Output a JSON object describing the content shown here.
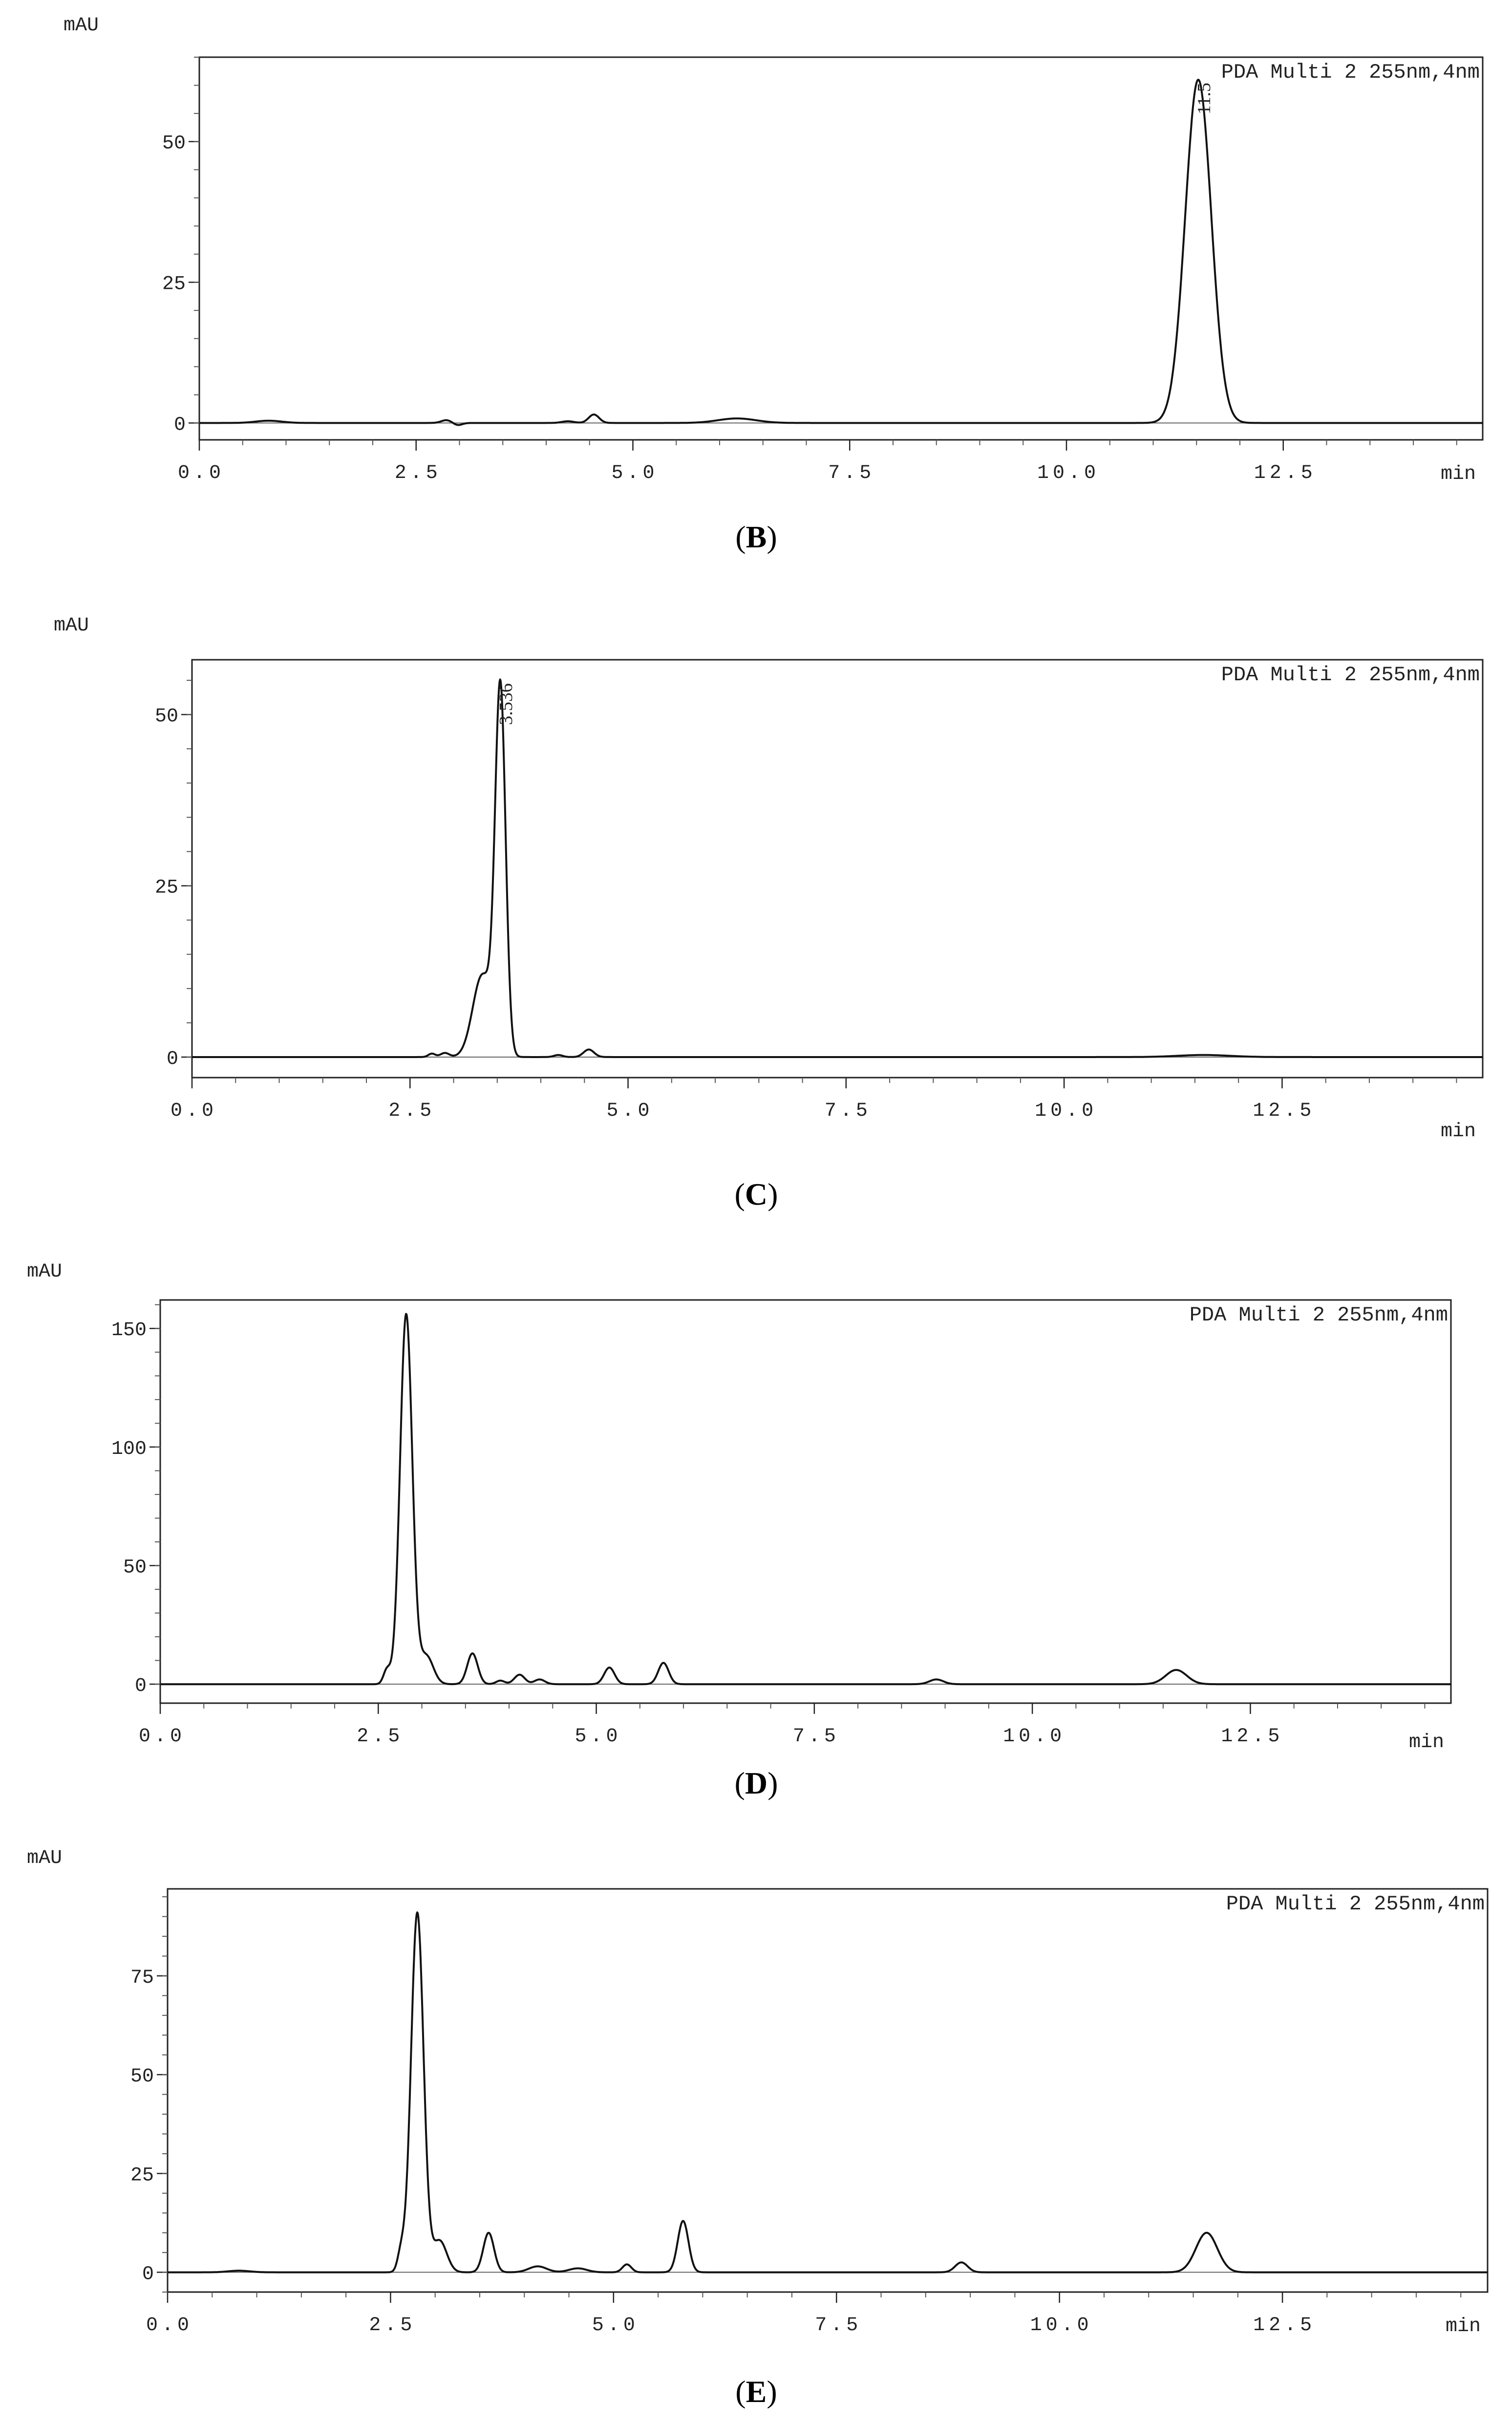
{
  "figure": {
    "captions": [
      {
        "open": "(",
        "letter": "B",
        "close": ")"
      },
      {
        "open": "(",
        "letter": "C",
        "close": ")"
      },
      {
        "open": "(",
        "letter": "D",
        "close": ")"
      },
      {
        "open": "(",
        "letter": "E",
        "close": ")"
      }
    ]
  },
  "chart_data": [
    {
      "type": "line",
      "panel": "B",
      "header": "PDA Multi 2 255nm,4nm",
      "ylabel": "mAU",
      "xlabel": "min",
      "xlim": [
        0,
        14.8
      ],
      "ylim": [
        -3,
        65
      ],
      "xticks": [
        "0.0",
        "2.5",
        "5.0",
        "7.5",
        "10.0",
        "12.5"
      ],
      "yticks": [
        "0",
        "25",
        "50"
      ],
      "peak_labels": [
        {
          "text": "11.5",
          "x": 11.52,
          "y": 61
        }
      ],
      "grid": false,
      "series": [
        {
          "peaks": [
            {
              "rt": 0.8,
              "height": 0.4,
              "sigma": 0.15
            },
            {
              "rt": 2.85,
              "height": 0.5,
              "sigma": 0.06
            },
            {
              "rt": 2.98,
              "height": -0.4,
              "sigma": 0.05
            },
            {
              "rt": 4.25,
              "height": 0.3,
              "sigma": 0.07
            },
            {
              "rt": 4.55,
              "height": 1.5,
              "sigma": 0.06
            },
            {
              "rt": 6.2,
              "height": 0.8,
              "sigma": 0.22
            },
            {
              "rt": 11.52,
              "height": 61,
              "sigma": 0.15
            }
          ]
        }
      ]
    },
    {
      "type": "line",
      "panel": "C",
      "header": "PDA Multi 2 255nm,4nm",
      "ylabel": "mAU",
      "xlabel": "min",
      "xlim": [
        0,
        14.8
      ],
      "ylim": [
        -3,
        58
      ],
      "xticks": [
        "0.0",
        "2.5",
        "5.0",
        "7.5",
        "10.0",
        "12.5"
      ],
      "yticks": [
        "0",
        "25",
        "50"
      ],
      "peak_labels": [
        {
          "text": "3.536",
          "x": 3.536,
          "y": 55
        }
      ],
      "grid": false,
      "series": [
        {
          "peaks": [
            {
              "rt": 2.75,
              "height": 0.5,
              "sigma": 0.04
            },
            {
              "rt": 2.9,
              "height": 0.6,
              "sigma": 0.05
            },
            {
              "rt": 3.33,
              "height": 12,
              "sigma": 0.11
            },
            {
              "rt": 3.536,
              "height": 53,
              "sigma": 0.06
            },
            {
              "rt": 4.2,
              "height": 0.3,
              "sigma": 0.05
            },
            {
              "rt": 4.55,
              "height": 1.1,
              "sigma": 0.06
            },
            {
              "rt": 11.6,
              "height": 0.3,
              "sigma": 0.3
            }
          ]
        }
      ]
    },
    {
      "type": "line",
      "panel": "D",
      "header": "PDA Multi 2 255nm,4nm",
      "ylabel": "mAU",
      "xlabel": "min",
      "xlim": [
        0,
        14.8
      ],
      "ylim": [
        -8,
        162
      ],
      "xticks": [
        "0.0",
        "2.5",
        "5.0",
        "7.5",
        "10.0",
        "12.5"
      ],
      "yticks": [
        "0",
        "50",
        "100",
        "150"
      ],
      "grid": false,
      "series": [
        {
          "peaks": [
            {
              "rt": 2.6,
              "height": 6,
              "sigma": 0.04
            },
            {
              "rt": 2.82,
              "height": 156,
              "sigma": 0.07
            },
            {
              "rt": 3.05,
              "height": 12,
              "sigma": 0.08
            },
            {
              "rt": 3.58,
              "height": 13,
              "sigma": 0.06
            },
            {
              "rt": 3.9,
              "height": 1.5,
              "sigma": 0.05
            },
            {
              "rt": 4.12,
              "height": 4,
              "sigma": 0.06
            },
            {
              "rt": 4.35,
              "height": 2,
              "sigma": 0.06
            },
            {
              "rt": 5.15,
              "height": 7,
              "sigma": 0.06
            },
            {
              "rt": 5.77,
              "height": 9,
              "sigma": 0.06
            },
            {
              "rt": 8.9,
              "height": 2,
              "sigma": 0.08
            },
            {
              "rt": 11.65,
              "height": 6,
              "sigma": 0.12
            }
          ]
        }
      ]
    },
    {
      "type": "line",
      "panel": "E",
      "header": "PDA Multi 2 255nm,4nm",
      "ylabel": "mAU",
      "xlabel": "min",
      "xlim": [
        0,
        14.8
      ],
      "ylim": [
        -5,
        97
      ],
      "xticks": [
        "0.0",
        "2.5",
        "5.0",
        "7.5",
        "10.0",
        "12.5"
      ],
      "yticks": [
        "0",
        "25",
        "50",
        "75"
      ],
      "grid": false,
      "series": [
        {
          "peaks": [
            {
              "rt": 0.8,
              "height": 0.4,
              "sigma": 0.12
            },
            {
              "rt": 2.62,
              "height": 5,
              "sigma": 0.04
            },
            {
              "rt": 2.8,
              "height": 91,
              "sigma": 0.07
            },
            {
              "rt": 3.05,
              "height": 8,
              "sigma": 0.08
            },
            {
              "rt": 3.6,
              "height": 10,
              "sigma": 0.06
            },
            {
              "rt": 4.15,
              "height": 1.5,
              "sigma": 0.1
            },
            {
              "rt": 4.6,
              "height": 1,
              "sigma": 0.1
            },
            {
              "rt": 5.15,
              "height": 2,
              "sigma": 0.05
            },
            {
              "rt": 5.78,
              "height": 13,
              "sigma": 0.06
            },
            {
              "rt": 8.9,
              "height": 2.5,
              "sigma": 0.07
            },
            {
              "rt": 11.65,
              "height": 10,
              "sigma": 0.12
            }
          ]
        }
      ]
    }
  ]
}
